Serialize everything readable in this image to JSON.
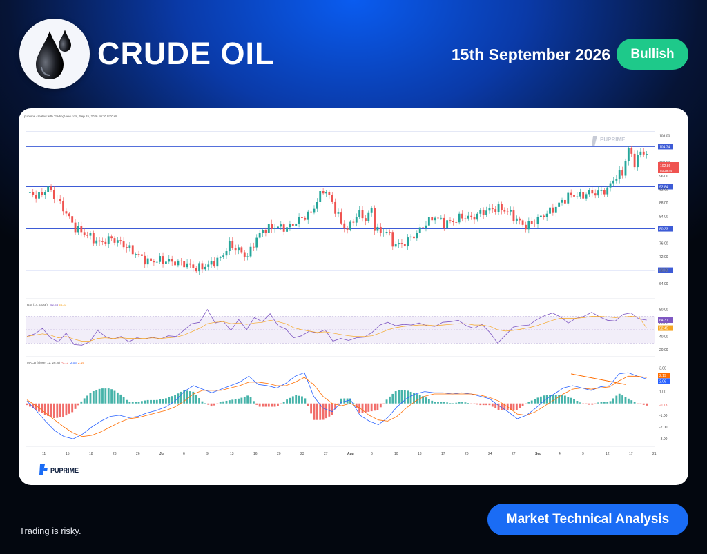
{
  "header": {
    "title": "CRUDE OIL",
    "date": "15th September 2026",
    "sentiment": "Bullish",
    "logo_icon": "oil-drop-icon"
  },
  "footer": {
    "disclaimer": "Trading is risky.",
    "cta_label": "Market Technical Analysis"
  },
  "colors": {
    "badge": "#1ec98a",
    "cta": "#1a6cf5",
    "bull_candle": "#26a69a",
    "bear_candle": "#ef5350",
    "level_line": "#3d5bd6",
    "rsi_line": "#7e57c2",
    "rsi_ma": "#f5a623",
    "macd_line": "#2962ff",
    "signal_line": "#ff6d00"
  },
  "chart_data": [
    {
      "type": "candlestick",
      "watermark": "PUPRIME",
      "credit": "puprime created with TradingView.com, Sep 15, 2026 10:30 UTC+8",
      "x_tick_labels": [
        "11",
        "15",
        "18",
        "23",
        "26",
        "Jul",
        "6",
        "9",
        "13",
        "16",
        "20",
        "23",
        "27",
        "Aug",
        "6",
        "10",
        "13",
        "17",
        "20",
        "24",
        "27",
        "Sep",
        "4",
        "9",
        "12",
        "17",
        "21"
      ],
      "y_tick_labels": [
        "108.00",
        "100.00",
        "96.00",
        "92.00",
        "88.00",
        "84.00",
        "76.00",
        "72.00",
        "68.00",
        "64.00"
      ],
      "ylim": [
        62,
        112
      ],
      "horizontal_levels": [
        104.74,
        92.84,
        80.33,
        68.03
      ],
      "last_price": "102.86",
      "countdown": "03:29:44",
      "close_path": [
        [
          0,
          91
        ],
        [
          4,
          90
        ],
        [
          7,
          92.5
        ],
        [
          10,
          89
        ],
        [
          13,
          85
        ],
        [
          16,
          80.5
        ],
        [
          20,
          78.5
        ],
        [
          24,
          76
        ],
        [
          28,
          77.5
        ],
        [
          32,
          75.5
        ],
        [
          36,
          73
        ],
        [
          40,
          70.5
        ],
        [
          44,
          71
        ],
        [
          48,
          70.5
        ],
        [
          52,
          70
        ],
        [
          56,
          68.5
        ],
        [
          60,
          69.5
        ],
        [
          64,
          71.5
        ],
        [
          67,
          75.5
        ],
        [
          70,
          74
        ],
        [
          73,
          72
        ],
        [
          75,
          76
        ],
        [
          78,
          80
        ],
        [
          82,
          81
        ],
        [
          86,
          80.5
        ],
        [
          90,
          83
        ],
        [
          94,
          85
        ],
        [
          96,
          88.5
        ],
        [
          98,
          92
        ],
        [
          100,
          90
        ],
        [
          102,
          86
        ],
        [
          104,
          82
        ],
        [
          106,
          80
        ],
        [
          108,
          83
        ],
        [
          110,
          85
        ],
        [
          112,
          83
        ],
        [
          114,
          86
        ],
        [
          115,
          81
        ],
        [
          117,
          79
        ],
        [
          119,
          80
        ],
        [
          121,
          76
        ],
        [
          124,
          75.5
        ],
        [
          126,
          77
        ],
        [
          129,
          79
        ],
        [
          132,
          82
        ],
        [
          135,
          84
        ],
        [
          138,
          82
        ],
        [
          141,
          82.5
        ],
        [
          144,
          84
        ],
        [
          147,
          83.5
        ],
        [
          150,
          85
        ],
        [
          153,
          86
        ],
        [
          156,
          86.5
        ],
        [
          159,
          85.5
        ],
        [
          162,
          83
        ],
        [
          165,
          81
        ],
        [
          168,
          82.5
        ],
        [
          171,
          84.5
        ],
        [
          174,
          86
        ],
        [
          177,
          88.5
        ],
        [
          180,
          90.5
        ],
        [
          183,
          90
        ],
        [
          186,
          91
        ],
        [
          189,
          91
        ],
        [
          192,
          92
        ],
        [
          194,
          95
        ],
        [
          197,
          97
        ],
        [
          199,
          104
        ],
        [
          201,
          100
        ],
        [
          203,
          103
        ],
        [
          205,
          102.86
        ]
      ]
    },
    {
      "type": "line",
      "title": "RSI (14, close)",
      "indicator_values": [
        "52.45",
        "64.31"
      ],
      "y_tick_labels": [
        "80.00",
        "60.00",
        "40.00",
        "20.00"
      ],
      "ylim": [
        14,
        90
      ],
      "band": [
        30,
        70
      ],
      "series": [
        {
          "name": "RSI",
          "last": 64.31,
          "values": [
            40,
            44,
            52,
            38,
            32,
            45,
            28,
            27,
            32,
            49,
            40,
            36,
            40,
            32,
            38,
            36,
            39,
            36,
            41,
            40,
            49,
            59,
            61,
            80,
            60,
            63,
            49,
            65,
            50,
            68,
            62,
            74,
            56,
            51,
            38,
            41,
            48,
            45,
            50,
            33,
            37,
            34,
            38,
            39,
            46,
            57,
            61,
            56,
            58,
            57,
            60,
            56,
            55,
            61,
            62,
            64,
            56,
            52,
            58,
            46,
            30,
            42,
            54,
            56,
            57,
            65,
            71,
            75,
            69,
            60,
            67,
            70,
            76,
            69,
            64,
            63,
            73,
            75,
            66,
            64.31
          ]
        },
        {
          "name": "RSI MA",
          "last": 52.45,
          "values": [
            40,
            42,
            44,
            42,
            38,
            40,
            36,
            33,
            33,
            37,
            38,
            37,
            38,
            37,
            37,
            37,
            38,
            37,
            38,
            39,
            42,
            47,
            52,
            59,
            61,
            62,
            59,
            60,
            58,
            60,
            61,
            64,
            62,
            59,
            53,
            50,
            48,
            46,
            47,
            45,
            43,
            41,
            40,
            40,
            41,
            45,
            50,
            53,
            55,
            56,
            57,
            57,
            56,
            57,
            58,
            59,
            59,
            57,
            57,
            55,
            50,
            48,
            49,
            51,
            53,
            56,
            60,
            64,
            67,
            67,
            67,
            68,
            70,
            70,
            69,
            68,
            69,
            70,
            69,
            52.45
          ]
        }
      ]
    },
    {
      "type": "bar",
      "title": "MACD (close, 12, 26, 9)",
      "indicator_values": [
        "-0.13",
        "2.06",
        "2.19"
      ],
      "y_tick_labels": [
        "3.00",
        "2.00",
        "1.00",
        "-1.00",
        "-2.00",
        "-3.00"
      ],
      "ylim": [
        -3.4,
        3.6
      ],
      "series": [
        {
          "name": "MACD",
          "last": 2.06,
          "values": [
            0.2,
            -0.6,
            -1.5,
            -2.3,
            -2.8,
            -3.0,
            -2.6,
            -2.0,
            -1.5,
            -1.1,
            -1.0,
            -1.2,
            -1.1,
            -0.8,
            -0.6,
            -0.3,
            0.2,
            1.0,
            1.5,
            1.2,
            0.9,
            1.2,
            1.5,
            1.8,
            2.3,
            1.6,
            1.5,
            1.3,
            1.7,
            2.3,
            2.6,
            0.6,
            -0.4,
            -0.7,
            0.1,
            0.3,
            -1.0,
            -1.5,
            -1.8,
            -1.2,
            -0.3,
            0.4,
            0.8,
            1.0,
            0.9,
            0.9,
            0.8,
            0.9,
            0.8,
            0.6,
            0.4,
            -0.2,
            -0.7,
            -1.3,
            -1.0,
            -0.4,
            0.3,
            0.8,
            1.3,
            1.5,
            1.3,
            1.1,
            1.4,
            1.5,
            2.5,
            2.6,
            2.3,
            2.06
          ]
        },
        {
          "name": "Signal",
          "last": 2.19,
          "values": [
            0.3,
            -0.2,
            -0.8,
            -1.4,
            -2.0,
            -2.5,
            -2.8,
            -2.7,
            -2.4,
            -2.0,
            -1.6,
            -1.3,
            -1.2,
            -1.0,
            -0.8,
            -0.6,
            -0.3,
            0.2,
            0.8,
            1.1,
            1.1,
            1.1,
            1.3,
            1.5,
            1.8,
            1.8,
            1.7,
            1.5,
            1.5,
            1.8,
            2.2,
            1.6,
            0.6,
            0.0,
            -0.2,
            0.0,
            -0.4,
            -1.0,
            -1.4,
            -1.5,
            -1.1,
            -0.4,
            0.2,
            0.6,
            0.8,
            0.8,
            0.8,
            0.8,
            0.8,
            0.7,
            0.5,
            0.2,
            -0.3,
            -0.9,
            -1.0,
            -0.7,
            -0.2,
            0.3,
            0.8,
            1.2,
            1.3,
            1.2,
            1.3,
            1.4,
            1.9,
            2.3,
            2.3,
            2.19
          ]
        },
        {
          "name": "Histogram",
          "last": -0.13
        }
      ],
      "trendline_note": "divergence"
    }
  ]
}
